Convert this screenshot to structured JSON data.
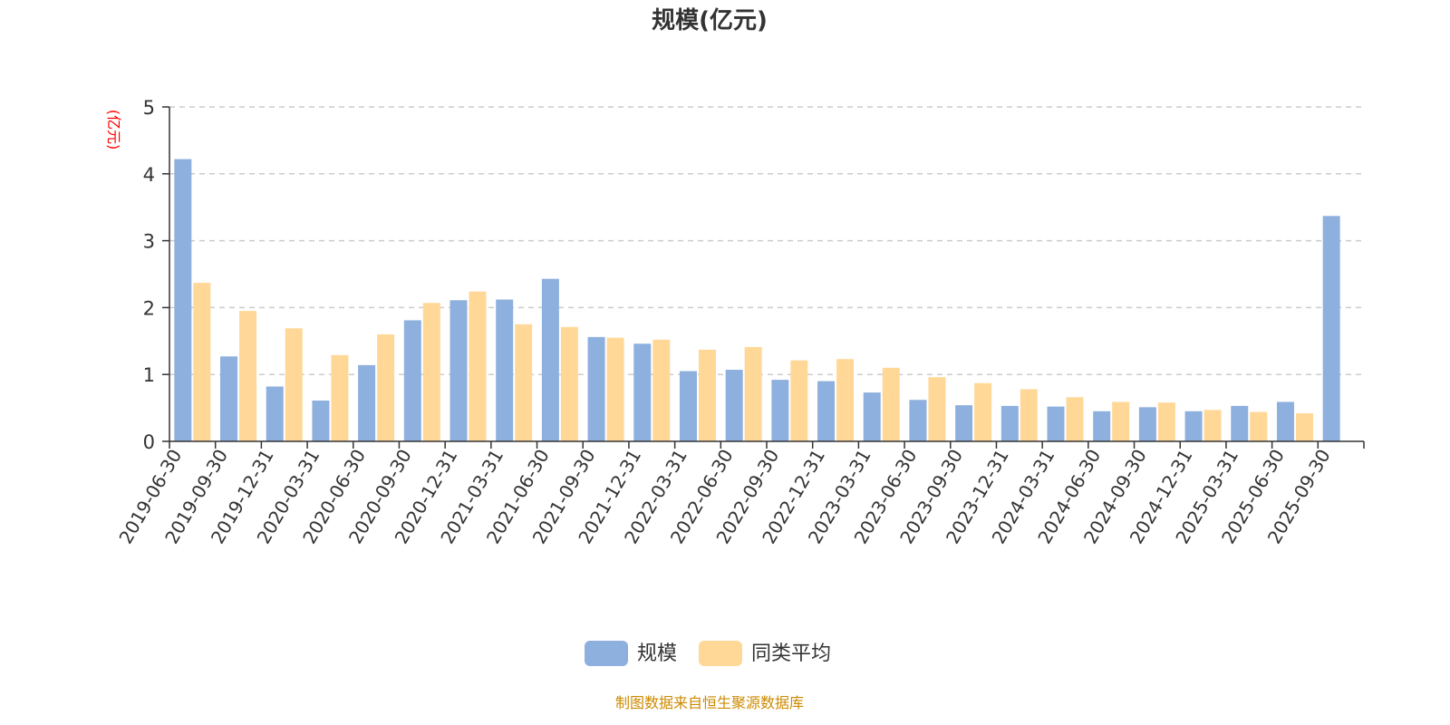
{
  "colors": {
    "series_1": "#8eb0de",
    "series_2": "#ffd898",
    "unit_label": "#ff0000",
    "source_text": "#cc8a00"
  },
  "source": "制图数据来自恒生聚源数据库",
  "chart_data": {
    "type": "bar",
    "title": "规模(亿元)",
    "ylabel": "(亿元)",
    "xlabel": "",
    "ylim": [
      0,
      5
    ],
    "yticks": [
      "0",
      "1",
      "2",
      "3",
      "4",
      "5"
    ],
    "grid": "horizontal-dashed",
    "legend_position": "bottom-center",
    "categories": [
      "2019-06-30",
      "2019-09-30",
      "2019-12-31",
      "2020-03-31",
      "2020-06-30",
      "2020-09-30",
      "2020-12-31",
      "2021-03-31",
      "2021-06-30",
      "2021-09-30",
      "2021-12-31",
      "2022-03-31",
      "2022-06-30",
      "2022-09-30",
      "2022-12-31",
      "2023-03-31",
      "2023-06-30",
      "2023-09-30",
      "2023-12-31",
      "2024-03-31",
      "2024-06-30",
      "2024-09-30",
      "2024-12-31",
      "2025-03-31",
      "2025-06-30",
      "2025-09-30"
    ],
    "series": [
      {
        "name": "规模",
        "values": [
          4.22,
          1.27,
          0.82,
          0.61,
          1.14,
          1.81,
          2.11,
          2.12,
          2.43,
          1.56,
          1.46,
          1.05,
          1.07,
          0.92,
          0.9,
          0.73,
          0.62,
          0.54,
          0.53,
          0.52,
          0.45,
          0.51,
          0.45,
          0.53,
          0.59,
          3.37
        ]
      },
      {
        "name": "同类平均",
        "values": [
          2.37,
          1.95,
          1.69,
          1.29,
          1.6,
          2.07,
          2.24,
          1.75,
          1.71,
          1.55,
          1.52,
          1.37,
          1.41,
          1.21,
          1.23,
          1.1,
          0.96,
          0.87,
          0.78,
          0.66,
          0.59,
          0.58,
          0.47,
          0.44,
          0.42,
          null
        ]
      }
    ]
  }
}
